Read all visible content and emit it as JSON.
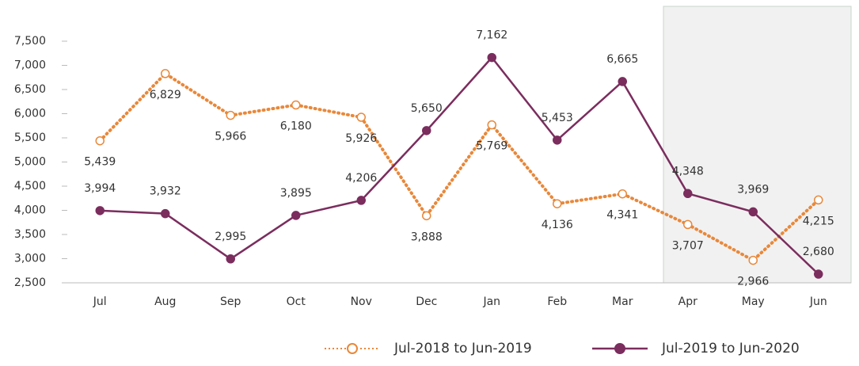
{
  "chart_data": {
    "type": "line",
    "categories": [
      "Jul",
      "Aug",
      "Sep",
      "Oct",
      "Nov",
      "Dec",
      "Jan",
      "Feb",
      "Mar",
      "Apr",
      "May",
      "Jun"
    ],
    "series": [
      {
        "name": "Jul-2018 to Jun-2019",
        "color": "#e8883a",
        "style": "dotted",
        "marker": "hollow",
        "values": [
          5439,
          6829,
          5966,
          6180,
          5926,
          3888,
          5769,
          4136,
          4341,
          3707,
          2966,
          4215
        ],
        "value_labels": [
          "5,439",
          "6,829",
          "5,966",
          "6,180",
          "5,926",
          "3,888",
          "5,769",
          "4,136",
          "4,341",
          "3,707",
          "2,966",
          "4,215"
        ]
      },
      {
        "name": "Jul-2019 to Jun-2020",
        "color": "#7b2d5e",
        "style": "solid",
        "marker": "filled",
        "values": [
          3994,
          3932,
          2995,
          3895,
          4206,
          5650,
          7162,
          5453,
          6665,
          4348,
          3969,
          2680
        ],
        "value_labels": [
          "3,994",
          "3,932",
          "2,995",
          "3,895",
          "4,206",
          "5,650",
          "7,162",
          "5,453",
          "6,665",
          "4,348",
          "3,969",
          "2,680"
        ]
      }
    ],
    "ylim": [
      2500,
      7500
    ],
    "yticks": [
      {
        "value": 2500,
        "label": "2,500"
      },
      {
        "value": 3000,
        "label": "3,000"
      },
      {
        "value": 3500,
        "label": "3,500"
      },
      {
        "value": 4000,
        "label": "4,000"
      },
      {
        "value": 4500,
        "label": "4,500"
      },
      {
        "value": 5000,
        "label": "5,000"
      },
      {
        "value": 5500,
        "label": "5,500"
      },
      {
        "value": 6000,
        "label": "6,000"
      },
      {
        "value": 6500,
        "label": "6,500"
      },
      {
        "value": 7000,
        "label": "7,000"
      },
      {
        "value": 7500,
        "label": "7,500"
      }
    ],
    "grid": false,
    "legend": "bottom-right"
  }
}
